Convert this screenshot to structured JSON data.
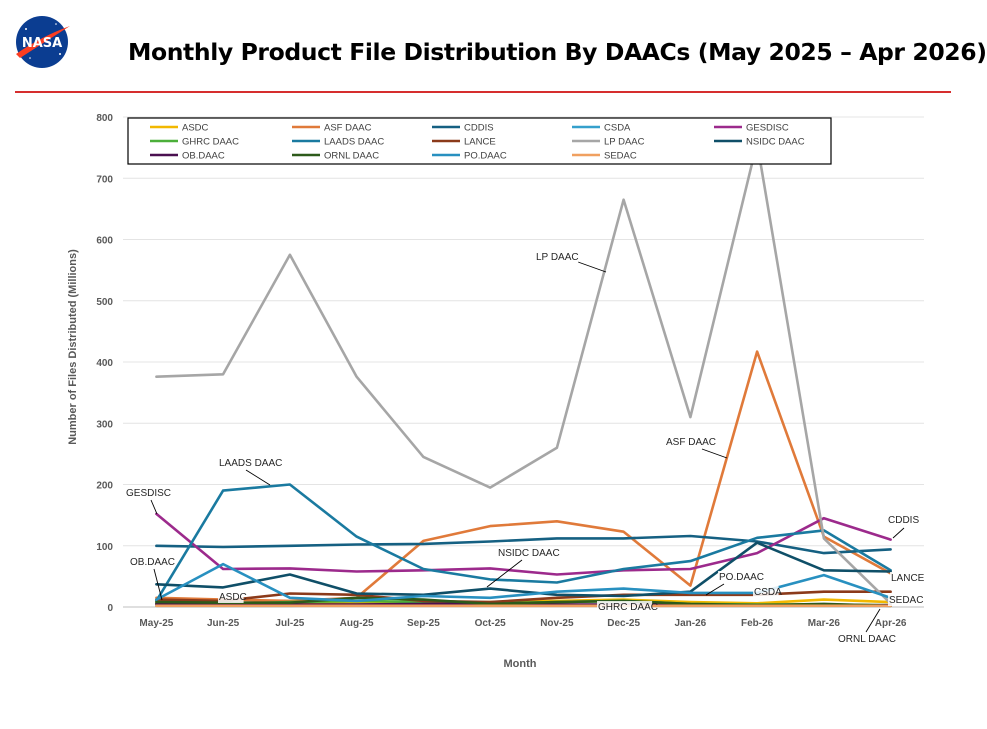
{
  "page": {
    "title": "Monthly Product File Distribution By DAACs (May 2025 – Apr 2026)",
    "logo_text": "NASA",
    "accent_color": "#d62e2e"
  },
  "chart_data": {
    "type": "line",
    "title": "",
    "xlabel": "Month",
    "ylabel": "Number of Files Distributed (Millions)",
    "ylim": [
      0,
      800
    ],
    "yticks": [
      0,
      100,
      200,
      300,
      400,
      500,
      600,
      700,
      800
    ],
    "grid": true,
    "legend_position": "top-left inside plot",
    "categories": [
      "May-25",
      "Jun-25",
      "Jul-25",
      "Aug-25",
      "Sep-25",
      "Oct-25",
      "Nov-25",
      "Dec-25",
      "Jan-26",
      "Feb-26",
      "Mar-26",
      "Apr-26"
    ],
    "series": [
      {
        "name": "ASDC",
        "color": "#f2b800",
        "values": [
          6,
          5,
          5,
          6,
          6,
          8,
          10,
          12,
          8,
          6,
          12,
          8
        ]
      },
      {
        "name": "ASF DAAC",
        "color": "#e07a3a",
        "values": [
          15,
          12,
          10,
          15,
          108,
          132,
          140,
          123,
          35,
          417,
          115,
          55
        ]
      },
      {
        "name": "CDDIS",
        "color": "#156082",
        "values": [
          100,
          98,
          100,
          102,
          103,
          107,
          112,
          112,
          116,
          107,
          88,
          94
        ]
      },
      {
        "name": "CSDA",
        "color": "#35a0cc",
        "values": [
          2,
          2,
          2,
          3,
          3,
          3,
          3,
          3,
          2,
          2,
          2,
          2
        ]
      },
      {
        "name": "GESDISC",
        "color": "#9c2a8c",
        "values": [
          152,
          62,
          63,
          58,
          60,
          63,
          53,
          60,
          62,
          88,
          145,
          110
        ]
      },
      {
        "name": "GHRC DAAC",
        "color": "#4caf3a",
        "values": [
          5,
          5,
          8,
          10,
          8,
          6,
          8,
          10,
          5,
          4,
          4,
          3
        ]
      },
      {
        "name": "LAADS DAAC",
        "color": "#1a7aa0",
        "values": [
          10,
          190,
          200,
          115,
          62,
          45,
          40,
          62,
          75,
          113,
          125,
          60
        ]
      },
      {
        "name": "LANCE",
        "color": "#8b3a1a",
        "values": [
          12,
          10,
          22,
          20,
          10,
          8,
          15,
          20,
          20,
          20,
          25,
          25
        ]
      },
      {
        "name": "LP DAAC",
        "color": "#a6a6a6",
        "values": [
          376,
          380,
          575,
          376,
          245,
          195,
          260,
          665,
          310,
          758,
          112,
          6
        ]
      },
      {
        "name": "NSIDC DAAC",
        "color": "#0f4f68",
        "values": [
          37,
          32,
          53,
          22,
          20,
          30,
          20,
          18,
          25,
          105,
          60,
          58
        ]
      },
      {
        "name": "OB.DAAC",
        "color": "#4a1050",
        "values": [
          5,
          5,
          4,
          4,
          5,
          5,
          4,
          4,
          3,
          3,
          3,
          3
        ]
      },
      {
        "name": "ORNL DAAC",
        "color": "#2d5a1a",
        "values": [
          8,
          7,
          7,
          15,
          12,
          5,
          8,
          10,
          5,
          3,
          5,
          2
        ]
      },
      {
        "name": "PO.DAAC",
        "color": "#2890c0",
        "values": [
          12,
          70,
          15,
          10,
          18,
          15,
          25,
          30,
          23,
          23,
          52,
          15
        ]
      },
      {
        "name": "SEDAC",
        "color": "#f0a060",
        "values": [
          2,
          2,
          2,
          2,
          2,
          2,
          2,
          2,
          2,
          2,
          2,
          2
        ]
      }
    ],
    "annotations": [
      {
        "text": "LP DAAC"
      },
      {
        "text": "ASF DAAC"
      },
      {
        "text": "LAADS DAAC"
      },
      {
        "text": "GESDISC"
      },
      {
        "text": "OB.DAAC"
      },
      {
        "text": "ASDC"
      },
      {
        "text": "NSIDC DAAC"
      },
      {
        "text": "GHRC DAAC"
      },
      {
        "text": "PO.DAAC"
      },
      {
        "text": "CSDA"
      },
      {
        "text": "CDDIS"
      },
      {
        "text": "LANCE"
      },
      {
        "text": "SEDAC"
      },
      {
        "text": "ORNL DAAC"
      }
    ]
  }
}
